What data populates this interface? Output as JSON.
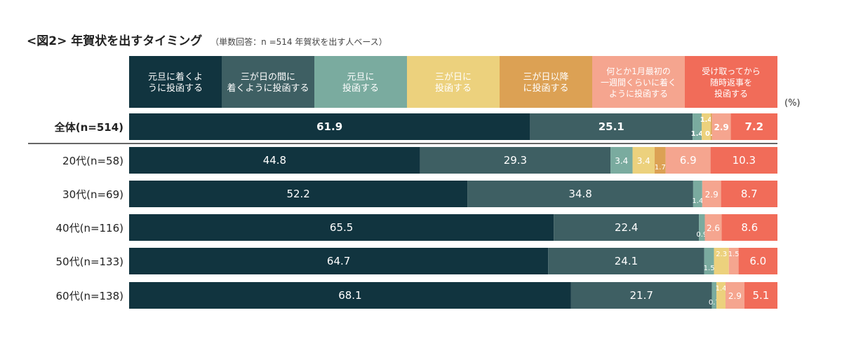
{
  "header": {
    "title": "<図2> 年賀状を出すタイミング",
    "subtitle": "（単数回答：n =514 年賀状を出す人ベース）"
  },
  "unit_label": "(%)",
  "chart_data": {
    "type": "bar",
    "orientation": "horizontal-stacked-100",
    "title": "<図2> 年賀状を出すタイミング",
    "subtitle": "（単数回答：n =514 年賀状を出す人ベース）",
    "unit": "(%)",
    "xlim": [
      0,
      100
    ],
    "legend_position": "top",
    "series": [
      {
        "name": "元旦に着くように投函する",
        "color": "#11343f",
        "label_color": "#ffffff"
      },
      {
        "name": "三が日の間に着くように投函する",
        "color": "#3e5f63",
        "label_color": "#ffffff"
      },
      {
        "name": "元旦に投函する",
        "color": "#7aab9f",
        "label_color": "#ffffff"
      },
      {
        "name": "三が日に投函する",
        "color": "#ecd17d",
        "label_color": "#ffffff"
      },
      {
        "name": "三が日以降に投函する",
        "color": "#dca154",
        "label_color": "#ffffff"
      },
      {
        "name": "何とか1月最初の一週間くらいに着くように投函する",
        "color": "#f5a58f",
        "label_color": "#ffffff"
      },
      {
        "name": "受け取ってから随時返事を投函する",
        "color": "#f16c59",
        "label_color": "#ffffff"
      }
    ],
    "legend_lines": [
      [
        "元旦に着くよ",
        "うに投函する"
      ],
      [
        "三が日の間に",
        "着くように投函する"
      ],
      [
        "元旦に",
        "投函する"
      ],
      [
        "三が日に",
        "投函する"
      ],
      [
        "三が日以降",
        "に投函する"
      ],
      [
        "何とか1月最初の",
        "一週間くらいに着く",
        "ように投函する"
      ],
      [
        "受け取ってから",
        "随時返事を",
        "投函する"
      ]
    ],
    "categories": [
      "全体(n=514)",
      "20代(n=58)",
      "30代(n=69)",
      "40代(n=116)",
      "50代(n=133)",
      "60代(n=138)"
    ],
    "values": [
      [
        61.9,
        25.1,
        1.4,
        1.4,
        0.2,
        2.9,
        7.2
      ],
      [
        44.8,
        29.3,
        3.4,
        3.4,
        1.7,
        6.9,
        10.3
      ],
      [
        52.2,
        34.8,
        1.4,
        0,
        0,
        2.9,
        8.7
      ],
      [
        65.5,
        22.4,
        0.9,
        0,
        0,
        2.6,
        8.6
      ],
      [
        64.7,
        24.1,
        1.5,
        2.3,
        0,
        1.5,
        6.0
      ],
      [
        68.1,
        21.7,
        0.7,
        1.4,
        0,
        2.9,
        5.1
      ]
    ]
  }
}
